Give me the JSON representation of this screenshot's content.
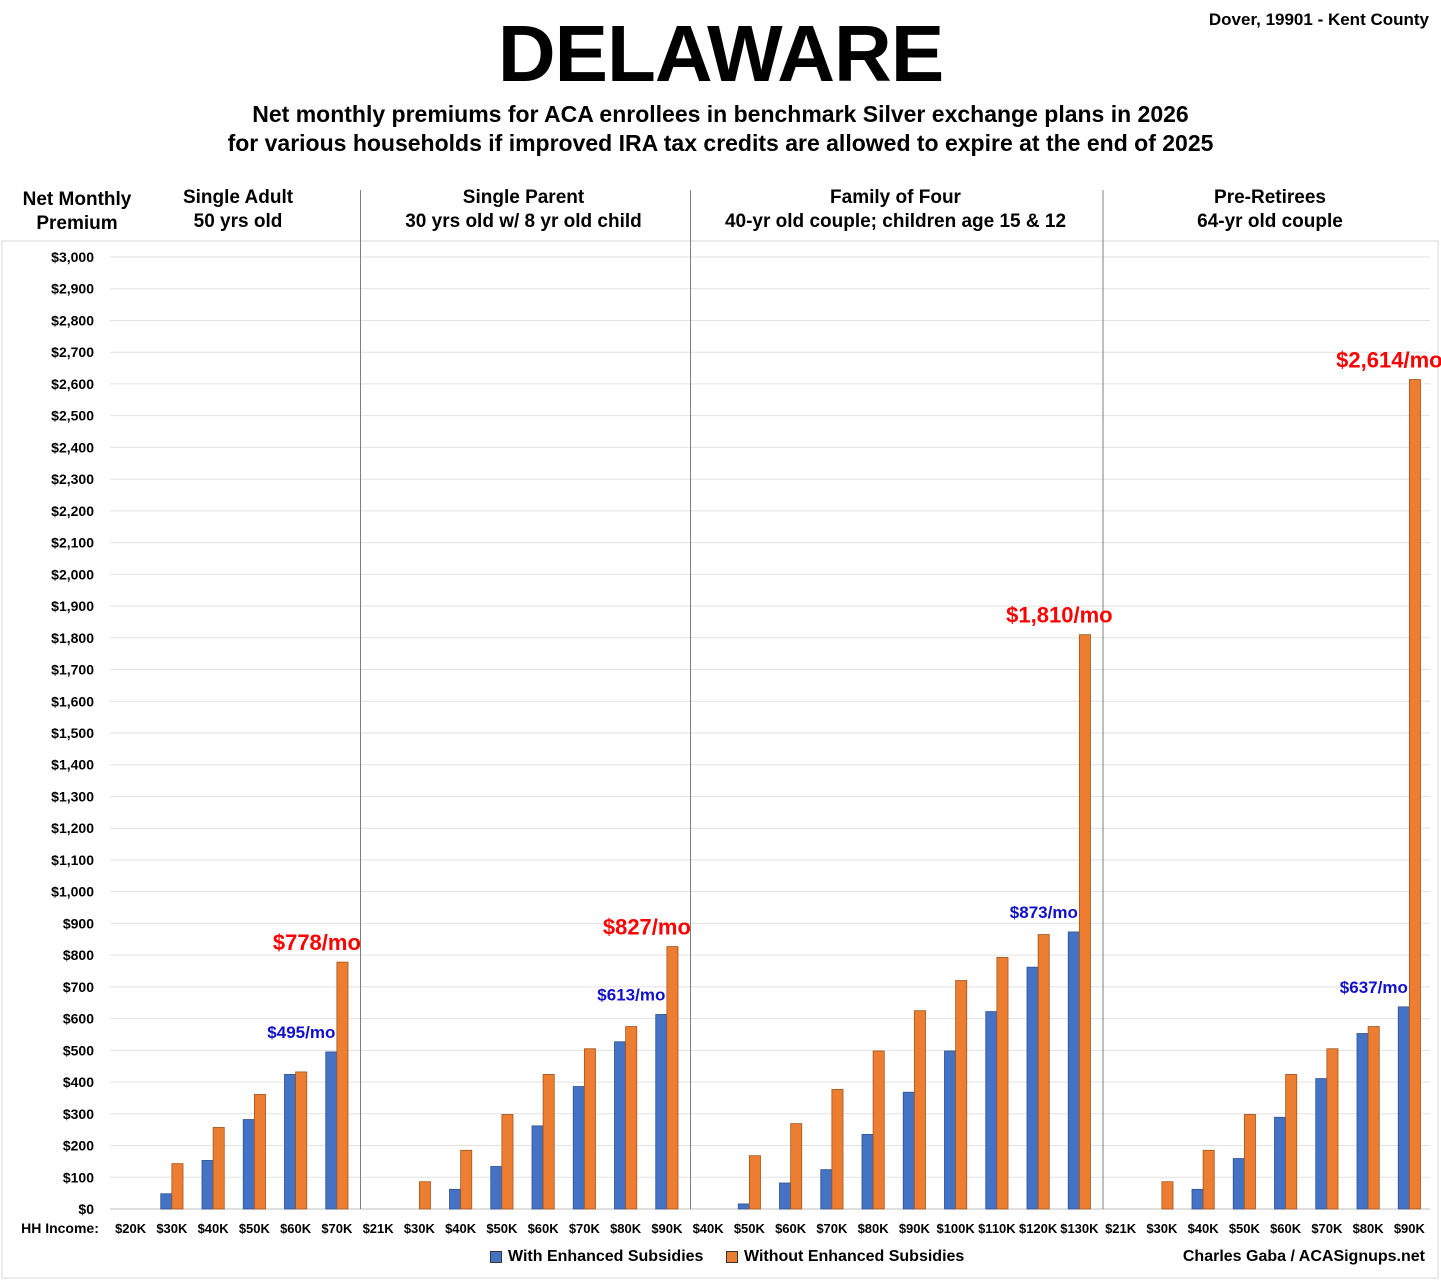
{
  "header": {
    "title": "DELAWARE",
    "location": "Dover, 19901 - Kent County",
    "subtitle_line1": "Net monthly premiums for ACA enrollees in benchmark Silver exchange plans in 2026",
    "subtitle_line2": "for various households if improved IRA tax credits are allowed to expire at the end of 2025"
  },
  "footer": {
    "legend_with": "With Enhanced Subsidies",
    "legend_without": "Without Enhanced Subsidies",
    "credit": "Charles Gaba / ACASignups.net"
  },
  "colors": {
    "with": "#4472C4",
    "without": "#ED7D31",
    "callout_red": "#FF0000",
    "callout_blue": "#1010CC"
  },
  "chart_data": {
    "type": "bar",
    "ylabel_line1": "Net Monthly",
    "ylabel_line2": "Premium",
    "xlabel": "HH Income:",
    "ylim": [
      0,
      3000
    ],
    "ytick_step": 100,
    "grid": true,
    "legend_position": "bottom",
    "series_names": [
      "With Enhanced Subsidies",
      "Without Enhanced Subsidies"
    ],
    "panels": [
      {
        "title_line1": "Single Adult",
        "title_line2": "50 yrs old",
        "categories": [
          "$20K",
          "$30K",
          "$40K",
          "$50K",
          "$60K",
          "$70K"
        ],
        "with": [
          0,
          48,
          153,
          282,
          424,
          495
        ],
        "without": [
          0,
          143,
          257,
          361,
          432,
          778
        ],
        "callout_with": "$495/mo",
        "callout_without": "$778/mo"
      },
      {
        "title_line1": "Single Parent",
        "title_line2": "30 yrs old w/ 8 yr old child",
        "categories": [
          "$21K",
          "$30K",
          "$40K",
          "$50K",
          "$60K",
          "$70K",
          "$80K",
          "$90K"
        ],
        "with": [
          0,
          0,
          62,
          134,
          262,
          386,
          527,
          613
        ],
        "without": [
          0,
          86,
          185,
          298,
          424,
          505,
          575,
          827
        ],
        "callout_with": "$613/mo",
        "callout_without": "$827/mo"
      },
      {
        "title_line1": "Family of Four",
        "title_line2": "40-yr old couple; children age 15 & 12",
        "categories": [
          "$40K",
          "$50K",
          "$60K",
          "$70K",
          "$80K",
          "$90K",
          "$100K",
          "$110K",
          "$120K",
          "$130K"
        ],
        "with": [
          0,
          16,
          82,
          124,
          235,
          368,
          498,
          622,
          762,
          873
        ],
        "without": [
          0,
          168,
          269,
          377,
          498,
          625,
          720,
          793,
          865,
          1810
        ],
        "callout_with": "$873/mo",
        "callout_without": "$1,810/mo"
      },
      {
        "title_line1": "Pre-Retirees",
        "title_line2": "64-yr old couple",
        "categories": [
          "$21K",
          "$30K",
          "$40K",
          "$50K",
          "$60K",
          "$70K",
          "$80K",
          "$90K"
        ],
        "with": [
          0,
          0,
          62,
          159,
          289,
          411,
          553,
          637
        ],
        "without": [
          0,
          86,
          185,
          298,
          424,
          505,
          575,
          2614
        ],
        "callout_with": "$637/mo",
        "callout_without": "$2,614/mo"
      }
    ]
  }
}
